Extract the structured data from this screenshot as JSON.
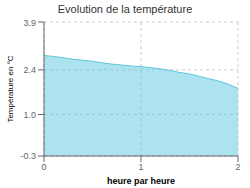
{
  "chart_data": {
    "type": "area",
    "title": "Evolution de la température",
    "xlabel": "heure par heure",
    "ylabel": "Température en °C",
    "x": [
      0,
      0.1,
      0.2,
      0.3,
      0.4,
      0.5,
      0.6,
      0.7,
      0.8,
      0.9,
      1.0,
      1.1,
      1.2,
      1.3,
      1.4,
      1.5,
      1.6,
      1.7,
      1.8,
      1.9,
      2.0
    ],
    "values": [
      2.85,
      2.82,
      2.78,
      2.73,
      2.7,
      2.67,
      2.62,
      2.58,
      2.55,
      2.52,
      2.5,
      2.47,
      2.43,
      2.38,
      2.32,
      2.27,
      2.2,
      2.12,
      2.05,
      1.95,
      1.82
    ],
    "color": "#5bc8dd",
    "xlim": [
      0,
      2
    ],
    "ylim": [
      -0.3,
      3.9
    ],
    "xticks": [
      0,
      1,
      2
    ],
    "yticks": [
      -0.3,
      {
        "value": 1.0,
        "label": "1.0"
      },
      2.4,
      3.9
    ],
    "grid": true
  }
}
